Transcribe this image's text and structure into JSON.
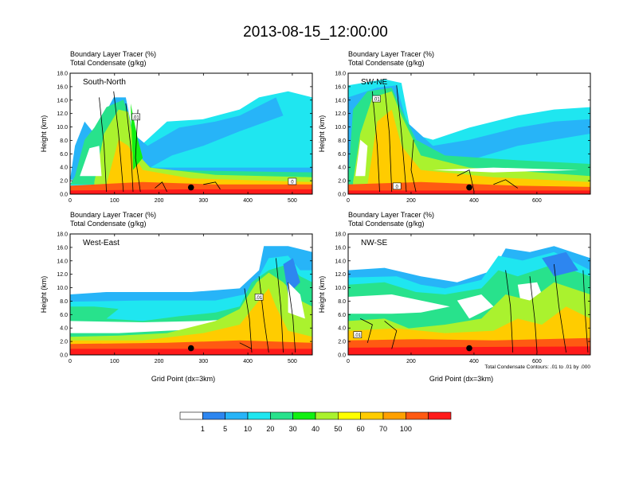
{
  "title": "2013-08-15_12:00:00",
  "chart_data": {
    "type": "heatmap",
    "title": "2013-08-15_12:00:00",
    "colorbar": {
      "colors": [
        "#ffffff",
        "#2d86f0",
        "#27b4f8",
        "#1fe6f0",
        "#28e28c",
        "#12f012",
        "#aaf22e",
        "#ffff00",
        "#ffcc00",
        "#ffa000",
        "#ff5a12",
        "#ff1a1a"
      ],
      "labels": [
        "1",
        "5",
        "10",
        "20",
        "30",
        "40",
        "50",
        "60",
        "70",
        "100"
      ]
    },
    "panels": [
      {
        "label": "South-North",
        "subtitle_line1": "Boundary Layer Tracer   (%)",
        "subtitle_line2": "Total Condensate   (g/kg)",
        "ylabel": "Height (km)",
        "xlabel": "",
        "x_range": [
          0,
          545
        ],
        "y_range": [
          0,
          18
        ],
        "xticks": [
          0,
          100,
          200,
          300,
          400,
          500
        ],
        "yticks": [
          "0.0",
          "2.0",
          "4.0",
          "6.0",
          "8.0",
          "10.0",
          "12.0",
          "14.0",
          "16.0",
          "18.0"
        ],
        "marker": [
          272,
          1.0
        ],
        "contour_labels": [
          {
            "t": ".01",
            "x": 148,
            "y": 11.5
          },
          {
            "t": "0",
            "x": 500,
            "y": 1.9
          }
        ]
      },
      {
        "label": "SW-NE",
        "subtitle_line1": "Boundary Layer Tracer   (%)",
        "subtitle_line2": "Total Condensate   (g/kg)",
        "ylabel": "Height (km)",
        "xlabel": "",
        "x_range": [
          0,
          770
        ],
        "y_range": [
          0,
          18
        ],
        "xticks": [
          0,
          200,
          400,
          600
        ],
        "yticks": [
          "0.0",
          "2.0",
          "4.0",
          "6.0",
          "8.0",
          "10.0",
          "12.0",
          "14.0",
          "16.0",
          "18.0"
        ],
        "marker": [
          385,
          1.0
        ],
        "contour_labels": [
          {
            "t": ".01",
            "x": 90,
            "y": 14.2
          },
          {
            "t": "0",
            "x": 155,
            "y": 1.2
          }
        ]
      },
      {
        "label": "West-East",
        "subtitle_line1": "Boundary Layer Tracer   (%)",
        "subtitle_line2": "Total Condensate   (g/kg)",
        "ylabel": "Height (km)",
        "xlabel": "Grid Point (dx=3km)",
        "x_range": [
          0,
          545
        ],
        "y_range": [
          0,
          18
        ],
        "xticks": [
          0,
          100,
          200,
          300,
          400,
          500
        ],
        "yticks": [
          "0.0",
          "2.0",
          "4.0",
          "6.0",
          "8.0",
          "10.0",
          "12.0",
          "14.0",
          "16.0",
          "18.0"
        ],
        "marker": [
          272,
          1.0
        ],
        "contour_labels": [
          {
            "t": ".01",
            "x": 425,
            "y": 8.6
          }
        ]
      },
      {
        "label": "NW-SE",
        "subtitle_line1": "Boundary Layer Tracer   (%)",
        "subtitle_line2": "Total Condensate   (g/kg)",
        "ylabel": "Height (km)",
        "xlabel": "Grid Point (dx=3km)",
        "x_range": [
          0,
          770
        ],
        "y_range": [
          0,
          18
        ],
        "xticks": [
          0,
          200,
          400,
          600
        ],
        "yticks": [
          "0.0",
          "2.0",
          "4.0",
          "6.0",
          "8.0",
          "10.0",
          "12.0",
          "14.0",
          "16.0",
          "18.0"
        ],
        "marker": [
          385,
          1.0
        ],
        "contour_labels": [
          {
            "t": ".01",
            "x": 30,
            "y": 3.0
          }
        ]
      }
    ],
    "contour_note": "Total Condensate Contours: .01 to .01 by .000"
  }
}
